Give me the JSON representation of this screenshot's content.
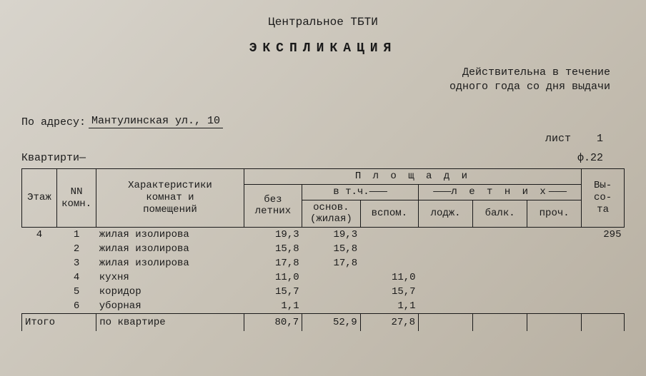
{
  "header": {
    "org": "Центральное ТБТИ",
    "title": "ЭКСПЛИКАЦИЯ",
    "validity_l1": "Действительна в течение",
    "validity_l2": "одного года со дня выдачи"
  },
  "address": {
    "label": "По адресу:",
    "value": "Мантулинская ул., 10"
  },
  "meta": {
    "sheet_label": "лист",
    "sheet_no": "1",
    "kvartir": "Квартирти—",
    "form": "ф.22"
  },
  "thead": {
    "floor": "Этаж",
    "room_no": "NN\nкомн.",
    "char": "Характеристики\nкомнат и\nпомещений",
    "areas": "П л о щ а д и",
    "bez": "без\nлетних",
    "vtch": "в т.ч.",
    "osnov": "основ.\n(жилая)",
    "vspom": "вспом.",
    "letnih": "л е т н и х",
    "lodj": "лодж.",
    "balk": "балк.",
    "proch": "проч.",
    "height": "Вы-\nсо-\nта"
  },
  "rows": [
    {
      "floor": "4",
      "n": "1",
      "desc": "жилая изолирова",
      "bez": "19,3",
      "osn": "19,3",
      "vsp": "",
      "lod": "",
      "bal": "",
      "pro": "",
      "h": "295"
    },
    {
      "floor": "",
      "n": "2",
      "desc": "жилая изолирова",
      "bez": "15,8",
      "osn": "15,8",
      "vsp": "",
      "lod": "",
      "bal": "",
      "pro": "",
      "h": ""
    },
    {
      "floor": "",
      "n": "3",
      "desc": "жилая изолирова",
      "bez": "17,8",
      "osn": "17,8",
      "vsp": "",
      "lod": "",
      "bal": "",
      "pro": "",
      "h": ""
    },
    {
      "floor": "",
      "n": "4",
      "desc": "кухня",
      "bez": "11,0",
      "osn": "",
      "vsp": "11,0",
      "lod": "",
      "bal": "",
      "pro": "",
      "h": ""
    },
    {
      "floor": "",
      "n": "5",
      "desc": "коридор",
      "bez": "15,7",
      "osn": "",
      "vsp": "15,7",
      "lod": "",
      "bal": "",
      "pro": "",
      "h": ""
    },
    {
      "floor": "",
      "n": "6",
      "desc": "уборная",
      "bez": "1,1",
      "osn": "",
      "vsp": "1,1",
      "lod": "",
      "bal": "",
      "pro": "",
      "h": ""
    }
  ],
  "totals": {
    "label": "Итого",
    "scope": "по квартире",
    "bez": "80,7",
    "osn": "52,9",
    "vsp": "27,8"
  },
  "style": {
    "col_widths": {
      "floor": 45,
      "n": 50,
      "desc": 190,
      "bez": 75,
      "osn": 75,
      "vsp": 75,
      "lod": 70,
      "bal": 70,
      "pro": 70,
      "h": 55
    }
  }
}
